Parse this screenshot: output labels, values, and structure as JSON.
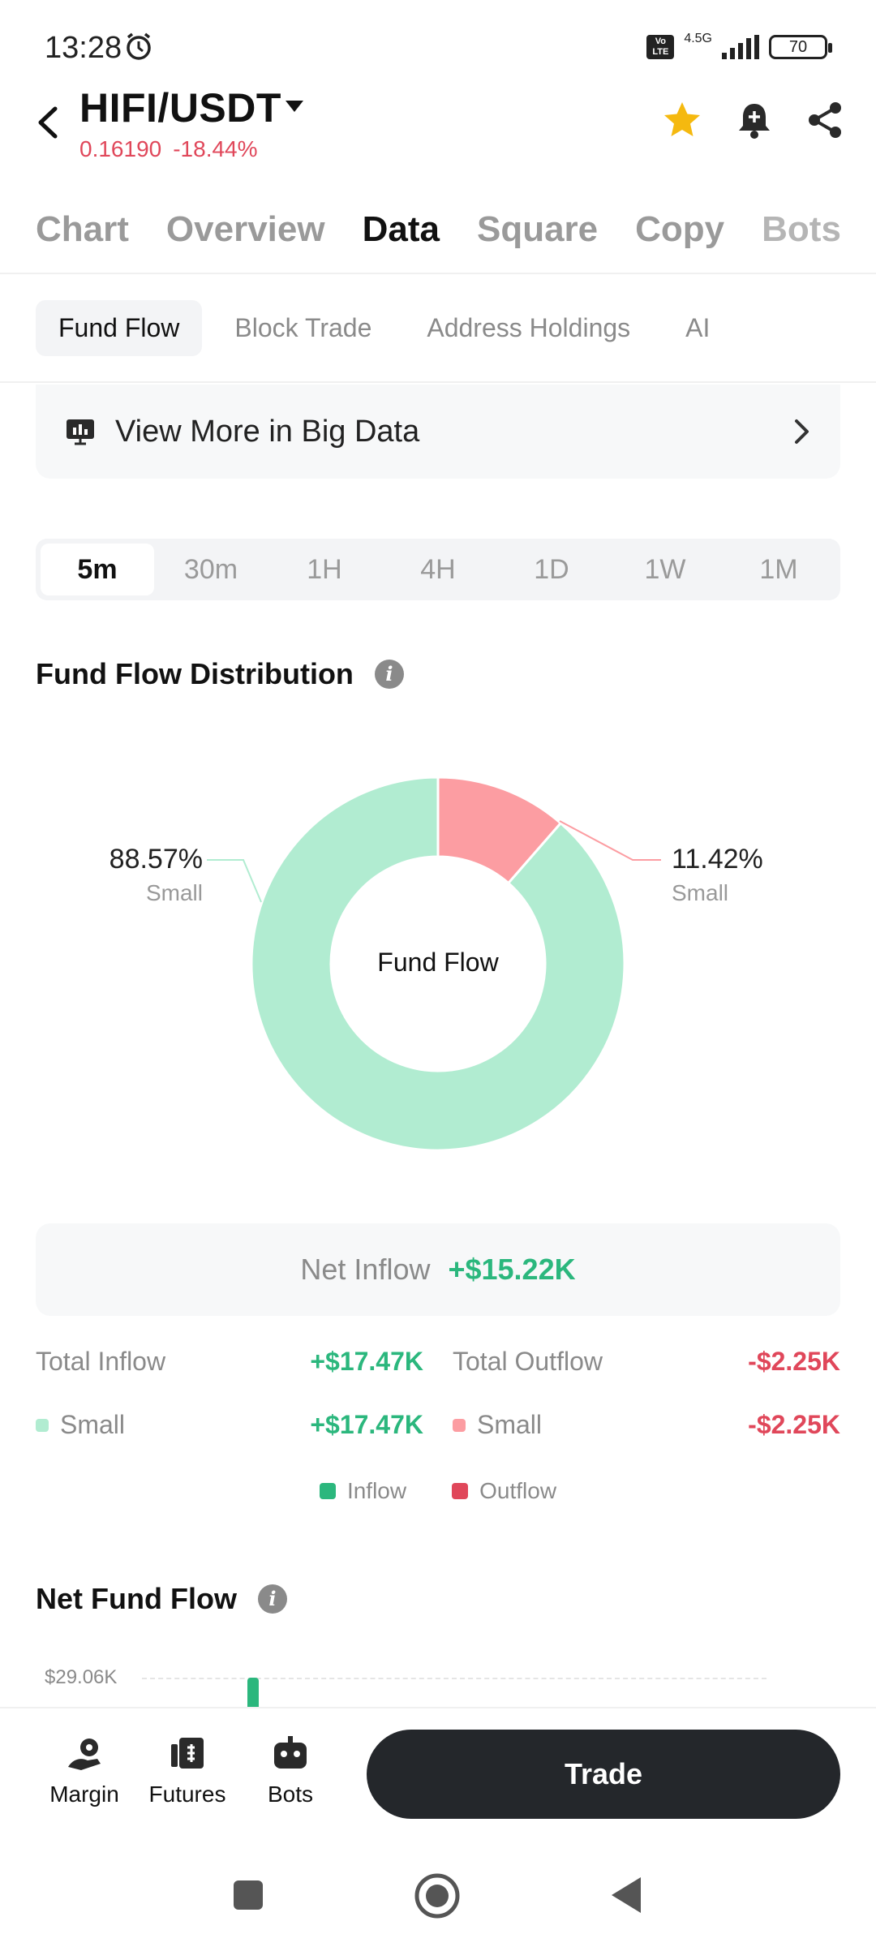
{
  "status_bar": {
    "time": "13:28",
    "network": "4.5G",
    "volte": "Vo LTE",
    "battery": "70"
  },
  "header": {
    "pair": "HIFI/USDT",
    "price": "0.16190",
    "change": "-18.44%"
  },
  "main_tabs": [
    "Chart",
    "Overview",
    "Data",
    "Square",
    "Copy",
    "Bots"
  ],
  "sub_tabs": [
    "Fund Flow",
    "Block Trade",
    "Address Holdings",
    "AI"
  ],
  "big_data": {
    "label": "View More in Big Data"
  },
  "timeframes": [
    "5m",
    "30m",
    "1H",
    "4H",
    "1D",
    "1W",
    "1M"
  ],
  "distribution": {
    "title": "Fund Flow Distribution",
    "center_label": "Fund Flow",
    "left": {
      "pct": "88.57%",
      "sub": "Small"
    },
    "right": {
      "pct": "11.42%",
      "sub": "Small"
    }
  },
  "chart_data": {
    "type": "pie",
    "categories": [
      "Small (Inflow)",
      "Small (Outflow)"
    ],
    "values": [
      88.57,
      11.42
    ],
    "colors": [
      "#b1ecd1",
      "#fc9da2"
    ]
  },
  "net": {
    "label": "Net Inflow",
    "value": "+$15.22K"
  },
  "totals": {
    "inflow_label": "Total Inflow",
    "inflow_value": "+$17.47K",
    "outflow_label": "Total Outflow",
    "outflow_value": "-$2.25K",
    "small_in_label": "Small",
    "small_in_value": "+$17.47K",
    "small_out_label": "Small",
    "small_out_value": "-$2.25K"
  },
  "legend": {
    "inflow": "Inflow",
    "outflow": "Outflow"
  },
  "net_fund_flow": {
    "title": "Net Fund Flow",
    "axis_top": "$29.06K"
  },
  "bottom_nav": {
    "margin": "Margin",
    "futures": "Futures",
    "bots": "Bots",
    "trade": "Trade"
  },
  "colors": {
    "green": "#2bb77d",
    "red": "#e0475a",
    "donut_green": "#b1ecd1",
    "donut_red": "#fc9da2"
  }
}
